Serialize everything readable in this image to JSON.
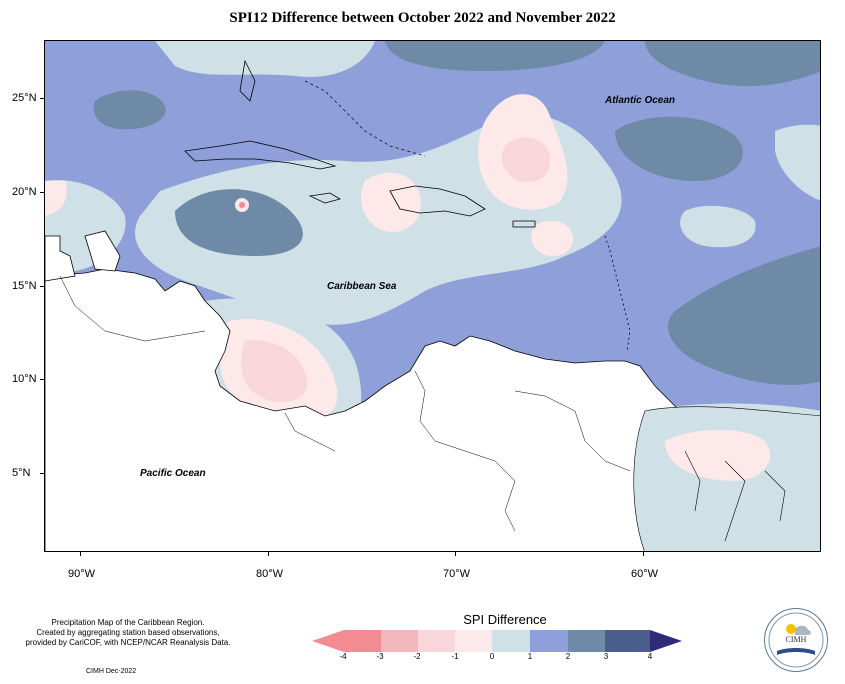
{
  "title": "SPI12 Difference between October 2022 and November 2022",
  "map": {
    "labels": {
      "atlantic": "Atlantic Ocean",
      "caribbean": "Caribbean Sea",
      "pacific": "Pacific Ocean"
    },
    "lat_ticks": [
      "25°N",
      "20°N",
      "15°N",
      "10°N",
      "5°N"
    ],
    "lon_ticks": [
      "90°W",
      "80°W",
      "70°W",
      "60°W"
    ]
  },
  "credits": {
    "line1": "Precipitation Map of the Caribbean Region.",
    "line2": "Created by aggregating station based observations,",
    "line3": "provided by CariCOF, with NCEP/NCAR Reanalysis Data.",
    "stamp": "CIMH Dec-2022"
  },
  "legend": {
    "title": "SPI Difference",
    "ticks": [
      "-4",
      "-3",
      "-2",
      "-1",
      "0",
      "1",
      "2",
      "3",
      "4"
    ],
    "colors": [
      "#f28b92",
      "#f0b8bd",
      "#f9d6dc",
      "#fde8ea",
      "#cfe0e6",
      "#8e9fd9",
      "#6f8aa6",
      "#4a5e8c",
      "#2e2a78"
    ]
  },
  "logo": {
    "text": "CIMH",
    "image": "cimh-logo"
  },
  "colors": {
    "bg_blue": "#8e9fd9",
    "dark_blue": "#6f8aa6",
    "light": "#cfe0e6",
    "pink": "#fde8ea",
    "pink2": "#f9d6dc",
    "land": "#ffffff"
  }
}
